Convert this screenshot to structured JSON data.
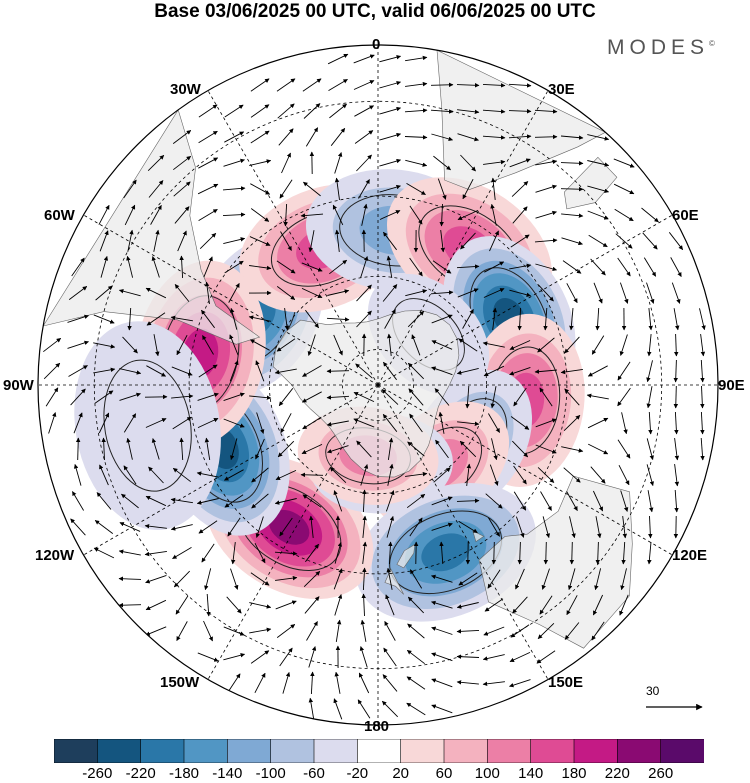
{
  "title": "Base 03/06/2025 00 UTC, valid 06/06/2025 00 UTC",
  "brand": "MODES",
  "brand_mark": "©",
  "longitude_labels": {
    "lon_0": "0",
    "lon_30e": "30E",
    "lon_60e": "60E",
    "lon_90e": "90E",
    "lon_120e": "120E",
    "lon_150e": "150E",
    "lon_180": "180",
    "lon_150w": "150W",
    "lon_120w": "120W",
    "lon_90w": "90W",
    "lon_60w": "60W",
    "lon_30w": "30W"
  },
  "reference_vector": {
    "label": "30"
  },
  "colorbar": {
    "colors": [
      "#1e3e5c",
      "#14557f",
      "#2a77a8",
      "#5196c4",
      "#7fa9d4",
      "#b0c2e0",
      "#dcdcee",
      "#ffffff",
      "#f8d8d8",
      "#f4b2bf",
      "#ec7fa6",
      "#df4b94",
      "#c41a85",
      "#8a0a72",
      "#5a0a6a"
    ],
    "ticks": [
      "-260",
      "-220",
      "-180",
      "-140",
      "-100",
      "-60",
      "-20",
      "20",
      "60",
      "100",
      "140",
      "180",
      "220",
      "260"
    ]
  },
  "map": {
    "projection": "south polar stereographic",
    "field": "geopotential height anomaly with wind vectors",
    "anomaly_centers": [
      {
        "lon": -60,
        "lat": -52,
        "value": -200
      },
      {
        "lon": -22,
        "lat": -50,
        "value": 140
      },
      {
        "lon": 6,
        "lat": -48,
        "value": -110
      },
      {
        "lon": 34,
        "lat": -46,
        "value": 150
      },
      {
        "lon": 63,
        "lat": -50,
        "value": -220
      },
      {
        "lon": 96,
        "lat": -50,
        "value": 160
      },
      {
        "lon": 122,
        "lat": -60,
        "value": -130
      },
      {
        "lon": 142,
        "lat": -62,
        "value": 110
      },
      {
        "lon": 158,
        "lat": -42,
        "value": -210
      },
      {
        "lon": -148,
        "lat": -45,
        "value": 230
      },
      {
        "lon": -112,
        "lat": -45,
        "value": -220
      },
      {
        "lon": -80,
        "lat": -42,
        "value": 210
      },
      {
        "lon": 178,
        "lat": -68,
        "value": -90
      },
      {
        "lon": -172,
        "lat": -70,
        "value": 120
      },
      {
        "lon": -100,
        "lat": -30,
        "value": -40
      },
      {
        "lon": 45,
        "lat": -70,
        "value": -50
      }
    ]
  }
}
